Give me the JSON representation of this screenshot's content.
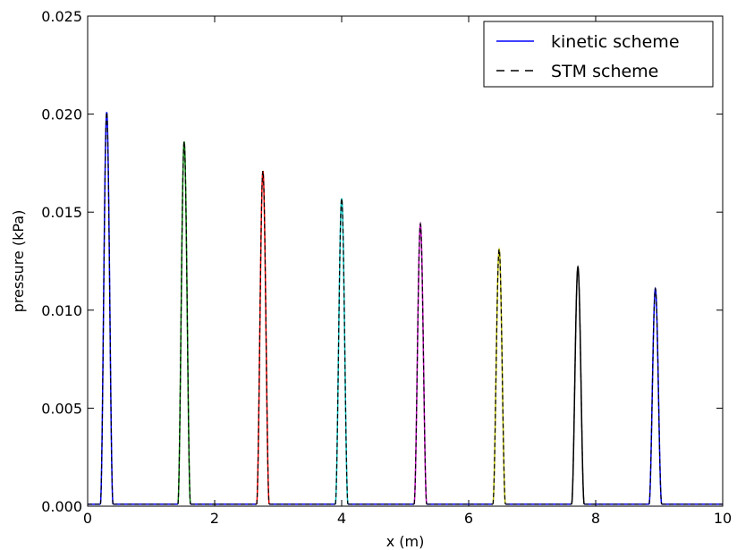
{
  "chart_data": {
    "type": "line",
    "title": "",
    "xlabel": "x (m)",
    "ylabel": "pressure (kPa)",
    "xlim": [
      0,
      10
    ],
    "ylim": [
      0,
      0.025
    ],
    "xticks": [
      "0",
      "2",
      "4",
      "6",
      "8",
      "10"
    ],
    "yticks": [
      "0.000",
      "0.005",
      "0.010",
      "0.015",
      "0.020",
      "0.025"
    ],
    "grid": false,
    "legend_position": "top-right",
    "legend": [
      {
        "label": "kinetic scheme",
        "style": "solid",
        "color": "#0000ff"
      },
      {
        "label": "STM scheme",
        "style": "dashed",
        "color": "#000000"
      }
    ],
    "baseline": 0.0001,
    "pulse_halfwidth": 0.1,
    "series": [
      {
        "center": 0.3,
        "peak": 0.0201,
        "color": "#0000ff"
      },
      {
        "center": 1.52,
        "peak": 0.0186,
        "color": "#008000"
      },
      {
        "center": 2.76,
        "peak": 0.0171,
        "color": "#ff0000"
      },
      {
        "center": 4.0,
        "peak": 0.0157,
        "color": "#00bfbf"
      },
      {
        "center": 5.24,
        "peak": 0.0144,
        "color": "#bf00bf"
      },
      {
        "center": 6.48,
        "peak": 0.0131,
        "color": "#bfbf00"
      },
      {
        "center": 7.72,
        "peak": 0.0122,
        "color": "#000000"
      },
      {
        "center": 8.94,
        "peak": 0.0111,
        "color": "#0000ff"
      }
    ]
  }
}
